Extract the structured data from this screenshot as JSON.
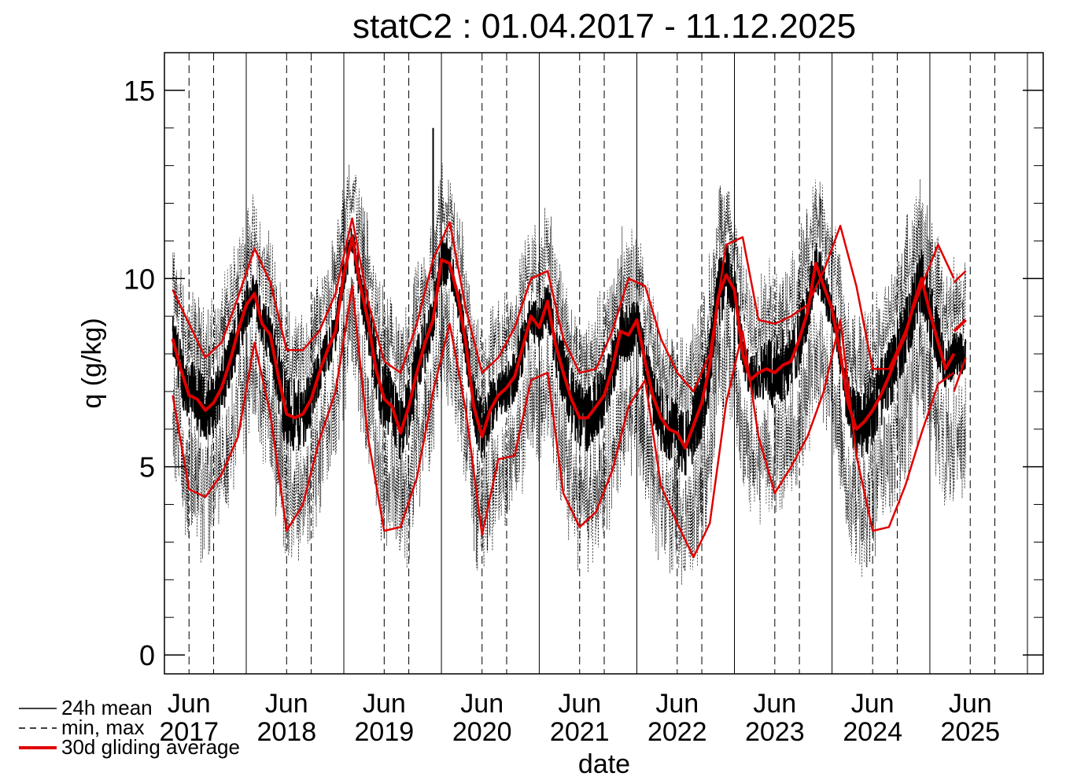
{
  "chart_data": {
    "type": "line",
    "title": "statC2 : 01.04.2017 - 11.12.2025",
    "xlabel": "date",
    "ylabel": "q (g/kg)",
    "ylim": [
      -0.5,
      16
    ],
    "xlim": [
      "2017-03-01",
      "2026-03-01"
    ],
    "y_ticks": [
      0,
      5,
      10,
      15
    ],
    "y_tick_labels": [
      "0",
      "5",
      "10",
      "15"
    ],
    "x_tick_labels": [
      {
        "month": "Jun",
        "year": "2017",
        "date": "2017-06-01"
      },
      {
        "month": "Jun",
        "year": "2018",
        "date": "2018-06-01"
      },
      {
        "month": "Jun",
        "year": "2019",
        "date": "2019-06-01"
      },
      {
        "month": "Jun",
        "year": "2020",
        "date": "2020-06-01"
      },
      {
        "month": "Jun",
        "year": "2021",
        "date": "2021-06-01"
      },
      {
        "month": "Jun",
        "year": "2022",
        "date": "2022-06-01"
      },
      {
        "month": "Jun",
        "year": "2023",
        "date": "2023-06-01"
      },
      {
        "month": "Jun",
        "year": "2024",
        "date": "2024-06-01"
      },
      {
        "month": "Jun",
        "year": "2025",
        "date": "2025-06-01"
      }
    ],
    "year_boundaries": [
      "2018-01-01",
      "2019-01-01",
      "2020-01-01",
      "2021-01-01",
      "2022-01-01",
      "2023-01-01",
      "2024-01-01",
      "2025-01-01",
      "2026-01-01"
    ],
    "quarter_lines": [
      "2017-06-01",
      "2017-09-01",
      "2018-06-01",
      "2018-09-01",
      "2019-06-01",
      "2019-09-01",
      "2020-06-01",
      "2020-09-01",
      "2021-06-01",
      "2021-09-01",
      "2022-06-01",
      "2022-09-01",
      "2023-06-01",
      "2023-09-01",
      "2024-06-01",
      "2024-09-01",
      "2025-06-01",
      "2025-09-01"
    ],
    "grid": "vertical lines at year boundaries (solid) and Jun/Sep (dashed)",
    "legend_position": "bottom-left",
    "legend": [
      {
        "label": "24h mean",
        "style": "solid",
        "color": "#000000"
      },
      {
        "label": "min, max",
        "style": "dashed",
        "color": "#000000"
      },
      {
        "label": "30d gliding average",
        "style": "solid-thick",
        "color": "#e00000"
      }
    ],
    "series": [
      {
        "name": "30d gliding average",
        "color": "#e00000",
        "x": [
          "2017-04-01",
          "2017-05-01",
          "2017-06-01",
          "2017-07-01",
          "2017-08-01",
          "2017-09-01",
          "2017-10-01",
          "2017-11-01",
          "2017-12-01",
          "2018-01-01",
          "2018-02-01",
          "2018-03-01",
          "2018-04-01",
          "2018-05-01",
          "2018-06-01",
          "2018-07-01",
          "2018-08-01",
          "2018-09-01",
          "2018-10-01",
          "2018-11-01",
          "2018-12-01",
          "2019-01-01",
          "2019-02-01",
          "2019-03-01",
          "2019-04-01",
          "2019-05-01",
          "2019-06-01",
          "2019-07-01",
          "2019-08-01",
          "2019-09-01",
          "2019-10-01",
          "2019-11-01",
          "2019-12-01",
          "2020-01-01",
          "2020-02-01",
          "2020-03-01",
          "2020-04-01",
          "2020-05-01",
          "2020-06-01",
          "2020-07-01",
          "2020-08-01",
          "2020-09-01",
          "2020-10-01",
          "2020-11-01",
          "2020-12-01",
          "2021-01-01",
          "2021-02-01",
          "2021-03-01",
          "2021-04-01",
          "2021-05-01",
          "2021-06-01",
          "2021-07-01",
          "2021-08-01",
          "2021-09-01",
          "2021-10-01",
          "2021-11-01",
          "2021-12-01",
          "2022-01-01",
          "2022-02-01",
          "2022-03-01",
          "2022-04-01",
          "2022-05-01",
          "2022-06-01",
          "2022-07-01",
          "2022-08-01",
          "2022-09-01",
          "2022-10-01",
          "2022-11-01",
          "2022-12-01",
          "2023-01-01",
          "2023-02-01",
          "2023-03-01",
          "2023-04-01",
          "2023-05-01",
          "2023-06-01",
          "2023-07-01",
          "2023-08-01",
          "2023-09-01",
          "2023-10-01",
          "2023-11-01",
          "2023-12-01",
          "2024-01-01",
          "2024-02-01",
          "2024-03-01",
          "2024-04-01",
          "2024-05-01",
          "2024-06-01",
          "2024-07-01",
          "2024-08-01",
          "2024-09-01",
          "2024-10-01",
          "2024-11-01",
          "2024-12-01",
          "2025-01-01",
          "2025-02-01",
          "2025-03-01",
          "2025-04-01"
        ],
        "values": [
          8.4,
          7.6,
          6.9,
          6.8,
          6.5,
          6.7,
          7.1,
          7.8,
          8.6,
          9.3,
          9.6,
          8.8,
          8.5,
          7.4,
          6.4,
          6.3,
          6.4,
          6.8,
          7.5,
          8.1,
          8.6,
          10.1,
          11.1,
          9.9,
          8.9,
          7.6,
          6.8,
          6.6,
          5.9,
          6.6,
          7.5,
          8.3,
          8.9,
          10.5,
          10.4,
          9.6,
          8.3,
          6.6,
          5.8,
          6.5,
          6.9,
          7.1,
          7.4,
          8.2,
          9.0,
          8.7,
          9.4,
          8.3,
          7.5,
          6.8,
          6.3,
          6.3,
          6.6,
          6.9,
          7.6,
          8.6,
          8.5,
          8.9,
          7.8,
          6.9,
          6.3,
          6.0,
          5.9,
          5.5,
          6.1,
          6.7,
          7.7,
          9.5,
          10.1,
          9.7,
          8.0,
          7.3,
          7.5,
          7.6,
          7.5,
          7.7,
          7.8,
          8.4,
          9.1,
          10.4,
          9.8,
          9.2,
          8.0,
          6.7,
          6.0,
          6.2,
          6.5,
          6.9,
          7.4,
          8.0,
          8.5,
          9.3,
          10.0,
          9.1,
          8.3,
          7.6,
          8.0
        ]
      },
      {
        "name": "30d max",
        "color": "#e00000",
        "x": [
          "2017-04-01",
          "2017-06-01",
          "2017-08-01",
          "2017-10-01",
          "2017-12-01",
          "2018-02-01",
          "2018-04-01",
          "2018-06-01",
          "2018-08-01",
          "2018-10-01",
          "2018-12-01",
          "2019-02-01",
          "2019-04-01",
          "2019-06-01",
          "2019-08-01",
          "2019-10-01",
          "2019-12-01",
          "2020-02-01",
          "2020-04-01",
          "2020-06-01",
          "2020-08-01",
          "2020-10-01",
          "2020-12-01",
          "2021-02-01",
          "2021-04-01",
          "2021-06-01",
          "2021-08-01",
          "2021-10-01",
          "2021-12-01",
          "2022-02-01",
          "2022-04-01",
          "2022-06-01",
          "2022-08-01",
          "2022-10-01",
          "2022-12-01",
          "2023-02-01",
          "2023-04-01",
          "2023-06-01",
          "2023-08-01",
          "2023-10-01",
          "2023-12-01",
          "2024-02-01",
          "2024-04-01",
          "2024-06-01",
          "2024-08-01",
          "2024-10-01",
          "2024-12-01",
          "2025-02-01",
          "2025-04-01"
        ],
        "values": [
          9.7,
          8.8,
          7.9,
          8.3,
          9.5,
          10.8,
          9.9,
          8.1,
          8.1,
          8.6,
          9.6,
          11.6,
          9.4,
          7.8,
          7.5,
          8.8,
          10.5,
          11.5,
          9.2,
          7.5,
          7.9,
          8.7,
          10.0,
          10.2,
          8.4,
          7.5,
          7.6,
          8.6,
          10.0,
          9.8,
          8.4,
          7.5,
          7.0,
          8.0,
          10.9,
          11.1,
          8.9,
          8.8,
          9.0,
          9.3,
          10.2,
          11.4,
          9.8,
          7.6,
          7.6,
          8.6,
          9.8,
          10.9,
          10.0
        ]
      },
      {
        "name": "30d min",
        "color": "#e00000",
        "x": [
          "2017-04-01",
          "2017-06-01",
          "2017-08-01",
          "2017-10-01",
          "2017-12-01",
          "2018-02-01",
          "2018-04-01",
          "2018-06-01",
          "2018-08-01",
          "2018-10-01",
          "2018-12-01",
          "2019-02-01",
          "2019-04-01",
          "2019-06-01",
          "2019-08-01",
          "2019-10-01",
          "2019-12-01",
          "2020-02-01",
          "2020-04-01",
          "2020-06-01",
          "2020-08-01",
          "2020-10-01",
          "2020-12-01",
          "2021-02-01",
          "2021-04-01",
          "2021-06-01",
          "2021-08-01",
          "2021-10-01",
          "2021-12-01",
          "2022-02-01",
          "2022-04-01",
          "2022-06-01",
          "2022-08-01",
          "2022-10-01",
          "2022-12-01",
          "2023-02-01",
          "2023-04-01",
          "2023-06-01",
          "2023-08-01",
          "2023-10-01",
          "2023-12-01",
          "2024-02-01",
          "2024-04-01",
          "2024-06-01",
          "2024-08-01",
          "2024-10-01",
          "2024-12-01",
          "2025-02-01",
          "2025-04-01"
        ],
        "values": [
          6.9,
          4.4,
          4.2,
          4.8,
          5.8,
          8.3,
          6.4,
          3.3,
          4.0,
          5.7,
          7.0,
          9.8,
          5.8,
          3.3,
          3.4,
          4.7,
          7.0,
          8.8,
          6.5,
          3.2,
          5.2,
          5.3,
          7.3,
          7.5,
          4.3,
          3.4,
          3.8,
          4.9,
          6.6,
          7.3,
          4.5,
          3.5,
          2.6,
          3.5,
          6.7,
          8.6,
          5.8,
          4.3,
          5.0,
          5.8,
          7.0,
          8.9,
          5.3,
          3.3,
          3.4,
          4.5,
          5.9,
          7.2,
          7.5
        ]
      },
      {
        "name": "2025 tail: 30d max",
        "color": "#e00000",
        "x": [
          "2025-04-01",
          "2025-05-15"
        ],
        "values": [
          9.9,
          10.2
        ]
      },
      {
        "name": "2025 tail: 30d mean",
        "color": "#e00000",
        "x": [
          "2025-04-01",
          "2025-05-15"
        ],
        "values": [
          8.6,
          8.9
        ]
      },
      {
        "name": "2025 tail: 30d min",
        "color": "#e00000",
        "x": [
          "2025-04-01",
          "2025-05-15"
        ],
        "values": [
          7.0,
          7.9
        ]
      }
    ],
    "peak_daily_max": {
      "x": "2019-12-01",
      "value": 14.0
    }
  }
}
